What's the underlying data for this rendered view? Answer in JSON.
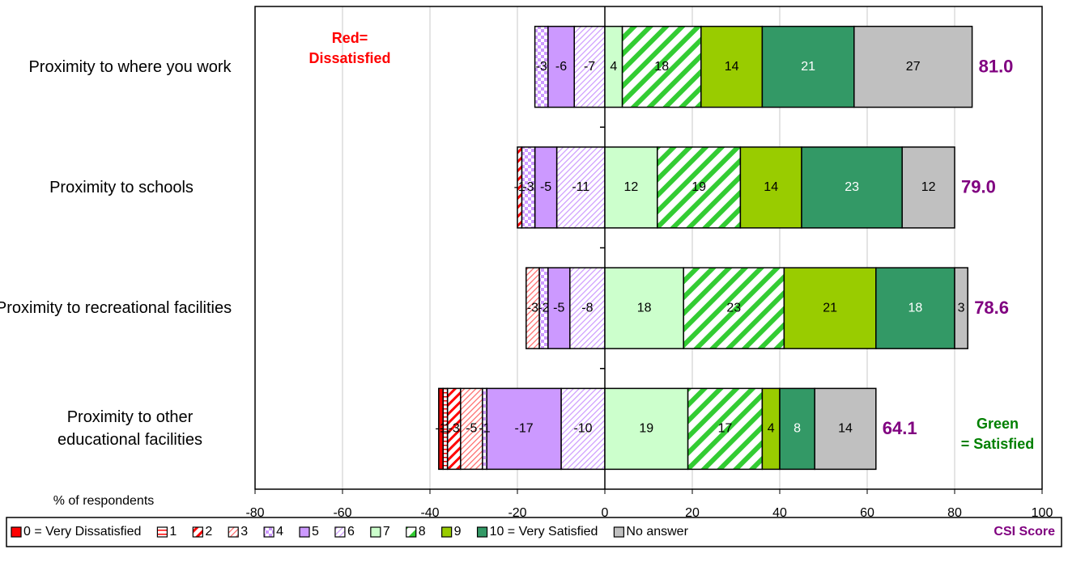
{
  "chart_data": {
    "type": "diverging_stacked_barh",
    "categories": [
      "Proximity to where you work",
      "Proximity to schools",
      "Proximity to recreational facilities",
      "Proximity to other educational facilities"
    ],
    "series": [
      {
        "name": "0 = Very Dissatisfied",
        "color": "#ff0000",
        "values": [
          0,
          0,
          0,
          -1
        ]
      },
      {
        "name": "1",
        "color": "#ff0000",
        "values": [
          0,
          0,
          0,
          -1
        ]
      },
      {
        "name": "2",
        "color": "#ff0000",
        "values": [
          0,
          -1,
          0,
          -3
        ]
      },
      {
        "name": "3",
        "color": "#ff6666",
        "values": [
          0,
          0,
          -3,
          -5
        ]
      },
      {
        "name": "4",
        "color": "#cc99ff",
        "values": [
          -3,
          -3,
          -2,
          -1
        ]
      },
      {
        "name": "5",
        "color": "#cc99ff",
        "values": [
          -6,
          -5,
          -5,
          -17
        ]
      },
      {
        "name": "6",
        "color": "#cc99ff",
        "values": [
          -7,
          -11,
          -8,
          -10
        ]
      },
      {
        "name": "7",
        "color": "#ccffcc",
        "values": [
          4,
          12,
          18,
          19
        ]
      },
      {
        "name": "8",
        "color": "#33cc33",
        "values": [
          18,
          19,
          23,
          17
        ]
      },
      {
        "name": "9",
        "color": "#99cc00",
        "values": [
          14,
          14,
          21,
          4
        ]
      },
      {
        "name": "10 = Very Satisfied",
        "color": "#339966",
        "values": [
          21,
          23,
          18,
          8
        ]
      },
      {
        "name": "No answer",
        "color": "#c0c0c0",
        "values": [
          27,
          12,
          3,
          14
        ]
      }
    ],
    "score": {
      "name": "CSI Score",
      "color": "#800080",
      "values": [
        81.0,
        79.0,
        78.6,
        64.1
      ],
      "value_labels": [
        "81.0",
        "79.0",
        "78.6",
        "64.1"
      ]
    },
    "xlabel": "% of respondents",
    "annotations": [
      {
        "lines": [
          "Red=",
          "Dissatisfied"
        ],
        "color": "#ff0000"
      },
      {
        "lines": [
          "Green",
          "= Satisfied"
        ],
        "color": "#008000"
      }
    ],
    "xlim": [
      -80,
      100
    ],
    "xticks": [
      -80,
      -60,
      -40,
      -20,
      0,
      20,
      40,
      60,
      80,
      100
    ],
    "grid": true
  }
}
